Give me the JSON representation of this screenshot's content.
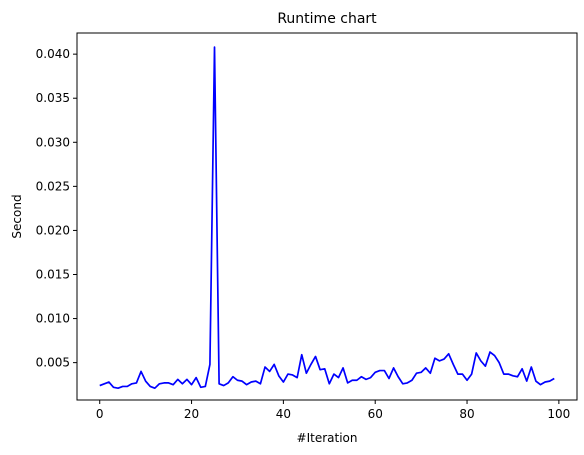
{
  "chart_data": {
    "type": "line",
    "title": "Runtime chart",
    "xlabel": "#Iteration",
    "ylabel": "Second",
    "xlim": [
      -4.95,
      103.95
    ],
    "ylim": [
      0.00076,
      0.0424
    ],
    "x_ticks": [
      {
        "value": 0,
        "label": "0"
      },
      {
        "value": 20,
        "label": "20"
      },
      {
        "value": 40,
        "label": "40"
      },
      {
        "value": 60,
        "label": "60"
      },
      {
        "value": 80,
        "label": "80"
      },
      {
        "value": 100,
        "label": "100"
      }
    ],
    "y_ticks": [
      {
        "value": 0.005,
        "label": "0.005"
      },
      {
        "value": 0.01,
        "label": "0.010"
      },
      {
        "value": 0.015,
        "label": "0.015"
      },
      {
        "value": 0.02,
        "label": "0.020"
      },
      {
        "value": 0.025,
        "label": "0.025"
      },
      {
        "value": 0.03,
        "label": "0.030"
      },
      {
        "value": 0.035,
        "label": "0.035"
      },
      {
        "value": 0.04,
        "label": "0.040"
      }
    ],
    "grid": false,
    "legend": "none",
    "series": [
      {
        "color": "#0000ff",
        "x": [
          0,
          1,
          2,
          3,
          4,
          5,
          6,
          7,
          8,
          9,
          10,
          11,
          12,
          13,
          14,
          15,
          16,
          17,
          18,
          19,
          20,
          21,
          22,
          23,
          24,
          25,
          26,
          27,
          28,
          29,
          30,
          31,
          32,
          33,
          34,
          35,
          36,
          37,
          38,
          39,
          40,
          41,
          42,
          43,
          44,
          45,
          46,
          47,
          48,
          49,
          50,
          51,
          52,
          53,
          54,
          55,
          56,
          57,
          58,
          59,
          60,
          61,
          62,
          63,
          64,
          65,
          66,
          67,
          68,
          69,
          70,
          71,
          72,
          73,
          74,
          75,
          76,
          77,
          78,
          79,
          80,
          81,
          82,
          83,
          84,
          85,
          86,
          87,
          88,
          89,
          90,
          91,
          92,
          93,
          94,
          95,
          96,
          97,
          98,
          99
        ],
        "values": [
          0.0024,
          0.0026,
          0.0028,
          0.0022,
          0.0021,
          0.0023,
          0.0023,
          0.0026,
          0.0027,
          0.004,
          0.0029,
          0.0023,
          0.0021,
          0.0026,
          0.0027,
          0.0027,
          0.0025,
          0.0031,
          0.0026,
          0.0031,
          0.0025,
          0.0033,
          0.0022,
          0.0023,
          0.0048,
          0.0408,
          0.0026,
          0.0024,
          0.0027,
          0.0034,
          0.003,
          0.0029,
          0.0025,
          0.0028,
          0.0029,
          0.0026,
          0.0045,
          0.004,
          0.0048,
          0.0035,
          0.0028,
          0.0037,
          0.0036,
          0.0033,
          0.0059,
          0.0038,
          0.0048,
          0.0057,
          0.0042,
          0.0043,
          0.0026,
          0.0037,
          0.0033,
          0.0044,
          0.0027,
          0.003,
          0.003,
          0.0034,
          0.0031,
          0.0033,
          0.0039,
          0.0041,
          0.0041,
          0.0032,
          0.0044,
          0.0034,
          0.0026,
          0.0027,
          0.003,
          0.0038,
          0.0039,
          0.0044,
          0.0038,
          0.0055,
          0.0052,
          0.0054,
          0.006,
          0.0048,
          0.0037,
          0.0037,
          0.003,
          0.0037,
          0.0061,
          0.0052,
          0.0046,
          0.0062,
          0.0058,
          0.005,
          0.0037,
          0.0037,
          0.0035,
          0.0034,
          0.0043,
          0.0029,
          0.0045,
          0.0029,
          0.0025,
          0.0028,
          0.0029,
          0.0032
        ]
      }
    ]
  }
}
